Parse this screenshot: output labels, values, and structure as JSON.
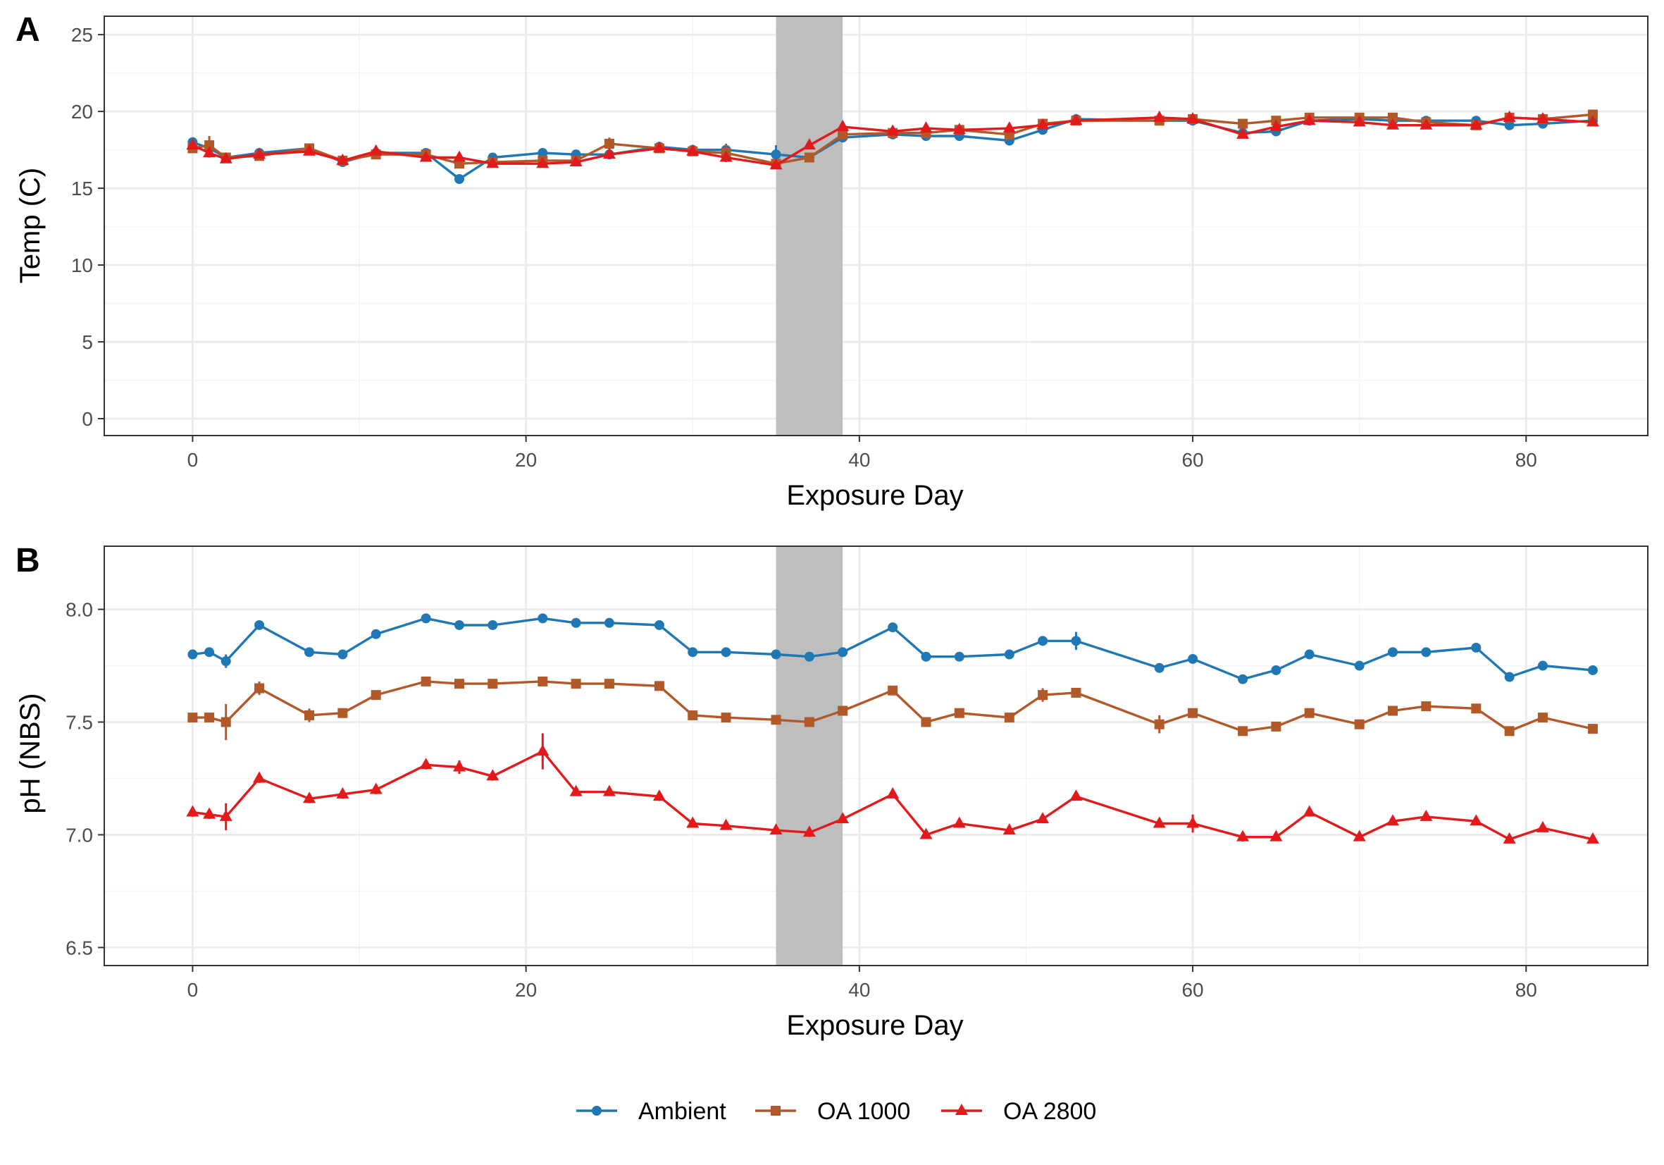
{
  "chart_data": [
    {
      "panel": "A",
      "type": "line",
      "xlabel": "Exposure Day",
      "ylabel": "Temp (C)",
      "xlim": [
        -5.3,
        87.3
      ],
      "ylim": [
        -1.1,
        26.2
      ],
      "xticks": [
        0,
        20,
        40,
        60,
        80
      ],
      "yticks": [
        0,
        5,
        10,
        15,
        20,
        25
      ],
      "grid": true,
      "shaded_interval": [
        35,
        39
      ],
      "x": [
        0,
        1,
        2,
        4,
        7,
        9,
        11,
        14,
        16,
        18,
        21,
        23,
        25,
        28,
        30,
        32,
        35,
        37,
        39,
        42,
        44,
        46,
        49,
        51,
        53,
        58,
        60,
        63,
        65,
        67,
        70,
        72,
        74,
        77,
        79,
        81,
        84
      ],
      "series": [
        {
          "name": "Ambient",
          "color": "#1f78b4",
          "marker": "circle",
          "values": [
            18.0,
            17.6,
            17.0,
            17.3,
            17.6,
            16.7,
            17.3,
            17.3,
            15.6,
            17.0,
            17.3,
            17.2,
            17.2,
            17.7,
            17.5,
            17.5,
            17.2,
            17.0,
            18.3,
            18.5,
            18.4,
            18.4,
            18.1,
            18.8,
            19.5,
            19.4,
            19.4,
            18.6,
            18.7,
            19.4,
            19.5,
            19.4,
            19.4,
            19.4,
            19.1,
            19.2,
            19.4
          ],
          "err": [
            0.3,
            0.2,
            0.2,
            0.1,
            0.1,
            0.1,
            0.1,
            0.1,
            0.1,
            0.1,
            0.1,
            0.1,
            0.1,
            0.1,
            0.1,
            0.1,
            0.6,
            0.2,
            0.1,
            0.1,
            0.1,
            0.1,
            0.1,
            0.1,
            0.1,
            0.1,
            0.1,
            0.1,
            0.1,
            0.1,
            0.1,
            0.1,
            0.1,
            0.1,
            0.1,
            0.1,
            0.1
          ]
        },
        {
          "name": "OA 1000",
          "color": "#b15928",
          "marker": "square",
          "values": [
            17.6,
            17.8,
            17.0,
            17.1,
            17.6,
            16.8,
            17.2,
            17.2,
            16.6,
            16.7,
            16.8,
            16.8,
            17.9,
            17.6,
            17.4,
            17.3,
            16.6,
            17.0,
            18.5,
            18.6,
            18.6,
            18.8,
            18.5,
            19.2,
            19.4,
            19.4,
            19.5,
            19.2,
            19.4,
            19.6,
            19.6,
            19.6,
            19.3,
            19.1,
            19.6,
            19.5,
            19.8
          ],
          "err": [
            0.2,
            0.6,
            0.2,
            0.1,
            0.1,
            0.1,
            0.1,
            0.1,
            0.1,
            0.1,
            0.1,
            0.1,
            0.4,
            0.1,
            0.1,
            0.6,
            0.1,
            0.2,
            0.1,
            0.1,
            0.1,
            0.1,
            0.2,
            0.1,
            0.1,
            0.1,
            0.1,
            0.1,
            0.1,
            0.3,
            0.1,
            0.3,
            0.1,
            0.1,
            0.1,
            0.1,
            0.1
          ]
        },
        {
          "name": "OA 2800",
          "color": "#e31a1c",
          "marker": "triangle",
          "values": [
            17.8,
            17.3,
            16.9,
            17.2,
            17.4,
            16.8,
            17.4,
            17.0,
            17.0,
            16.6,
            16.6,
            16.7,
            17.2,
            17.6,
            17.4,
            17.0,
            16.5,
            17.8,
            19.0,
            18.7,
            18.9,
            18.8,
            18.9,
            19.1,
            19.4,
            19.6,
            19.5,
            18.5,
            19.0,
            19.4,
            19.3,
            19.1,
            19.1,
            19.1,
            19.6,
            19.5,
            19.3
          ],
          "err": [
            0.2,
            0.3,
            0.1,
            0.1,
            0.1,
            0.1,
            0.1,
            0.1,
            0.1,
            0.1,
            0.1,
            0.1,
            0.1,
            0.1,
            0.1,
            0.1,
            0.1,
            0.1,
            0.1,
            0.1,
            0.1,
            0.1,
            0.1,
            0.1,
            0.1,
            0.1,
            0.1,
            0.1,
            0.1,
            0.1,
            0.1,
            0.1,
            0.1,
            0.1,
            0.1,
            0.1,
            0.1
          ]
        }
      ]
    },
    {
      "panel": "B",
      "type": "line",
      "xlabel": "Exposure Day",
      "ylabel": "pH (NBS)",
      "xlim": [
        -5.3,
        87.3
      ],
      "ylim": [
        6.42,
        8.28
      ],
      "xticks": [
        0,
        20,
        40,
        60,
        80
      ],
      "yticks": [
        6.5,
        7.0,
        7.5,
        8.0
      ],
      "ytick_labels": [
        "6.5",
        "7.0",
        "7.5",
        "8.0"
      ],
      "grid": true,
      "shaded_interval": [
        35,
        39
      ],
      "x": [
        0,
        1,
        2,
        4,
        7,
        9,
        11,
        14,
        16,
        18,
        21,
        23,
        25,
        28,
        30,
        32,
        35,
        37,
        39,
        42,
        44,
        46,
        49,
        51,
        53,
        58,
        60,
        63,
        65,
        67,
        70,
        72,
        74,
        77,
        79,
        81,
        84
      ],
      "series": [
        {
          "name": "Ambient",
          "color": "#1f78b4",
          "marker": "circle",
          "values": [
            7.8,
            7.81,
            7.77,
            7.93,
            7.81,
            7.8,
            7.89,
            7.96,
            7.93,
            7.93,
            7.96,
            7.94,
            7.94,
            7.93,
            7.81,
            7.81,
            7.8,
            7.79,
            7.81,
            7.92,
            7.79,
            7.79,
            7.8,
            7.86,
            7.86,
            7.74,
            7.78,
            7.69,
            7.73,
            7.8,
            7.75,
            7.81,
            7.81,
            7.83,
            7.7,
            7.75,
            7.73
          ],
          "err": [
            0.01,
            0.01,
            0.03,
            0.01,
            0.01,
            0.01,
            0.01,
            0.01,
            0.01,
            0.01,
            0.01,
            0.01,
            0.01,
            0.01,
            0.01,
            0.01,
            0.01,
            0.02,
            0.01,
            0.02,
            0.01,
            0.01,
            0.01,
            0.01,
            0.04,
            0.01,
            0.01,
            0.01,
            0.01,
            0.01,
            0.01,
            0.01,
            0.01,
            0.01,
            0.01,
            0.01,
            0.01
          ]
        },
        {
          "name": "OA 1000",
          "color": "#b15928",
          "marker": "square",
          "values": [
            7.52,
            7.52,
            7.5,
            7.65,
            7.53,
            7.54,
            7.62,
            7.68,
            7.67,
            7.67,
            7.68,
            7.67,
            7.67,
            7.66,
            7.53,
            7.52,
            7.51,
            7.5,
            7.55,
            7.64,
            7.5,
            7.54,
            7.52,
            7.62,
            7.63,
            7.49,
            7.54,
            7.46,
            7.48,
            7.54,
            7.49,
            7.55,
            7.57,
            7.56,
            7.46,
            7.52,
            7.47
          ],
          "err": [
            0.02,
            0.02,
            0.08,
            0.03,
            0.03,
            0.02,
            0.01,
            0.01,
            0.01,
            0.01,
            0.01,
            0.01,
            0.01,
            0.01,
            0.01,
            0.01,
            0.01,
            0.01,
            0.01,
            0.01,
            0.01,
            0.01,
            0.01,
            0.03,
            0.01,
            0.04,
            0.01,
            0.02,
            0.01,
            0.01,
            0.01,
            0.01,
            0.01,
            0.01,
            0.01,
            0.01,
            0.01
          ]
        },
        {
          "name": "OA 2800",
          "color": "#e31a1c",
          "marker": "triangle",
          "values": [
            7.1,
            7.09,
            7.08,
            7.25,
            7.16,
            7.18,
            7.2,
            7.31,
            7.3,
            7.26,
            7.37,
            7.19,
            7.19,
            7.17,
            7.05,
            7.04,
            7.02,
            7.01,
            7.07,
            7.18,
            7.0,
            7.05,
            7.02,
            7.07,
            7.17,
            7.05,
            7.05,
            6.99,
            6.99,
            7.1,
            6.99,
            7.06,
            7.08,
            7.06,
            6.98,
            7.03,
            6.98
          ],
          "err": [
            0.02,
            0.02,
            0.06,
            0.02,
            0.02,
            0.02,
            0.02,
            0.02,
            0.03,
            0.02,
            0.08,
            0.01,
            0.01,
            0.02,
            0.01,
            0.01,
            0.01,
            0.02,
            0.01,
            0.01,
            0.01,
            0.01,
            0.01,
            0.01,
            0.01,
            0.01,
            0.04,
            0.02,
            0.01,
            0.01,
            0.01,
            0.01,
            0.01,
            0.01,
            0.01,
            0.01,
            0.01
          ]
        }
      ]
    }
  ],
  "legend": {
    "position": "bottom",
    "items": [
      {
        "label": "Ambient",
        "color": "#1f78b4",
        "marker": "circle"
      },
      {
        "label": "OA 1000",
        "color": "#b15928",
        "marker": "square"
      },
      {
        "label": "OA 2800",
        "color": "#e31a1c",
        "marker": "triangle"
      }
    ]
  },
  "style": {
    "shade_color": "#bebebe",
    "grid_major_color": "#ebebeb",
    "grid_minor_color": "#f4f4f4",
    "panel_border_color": "#333333"
  }
}
